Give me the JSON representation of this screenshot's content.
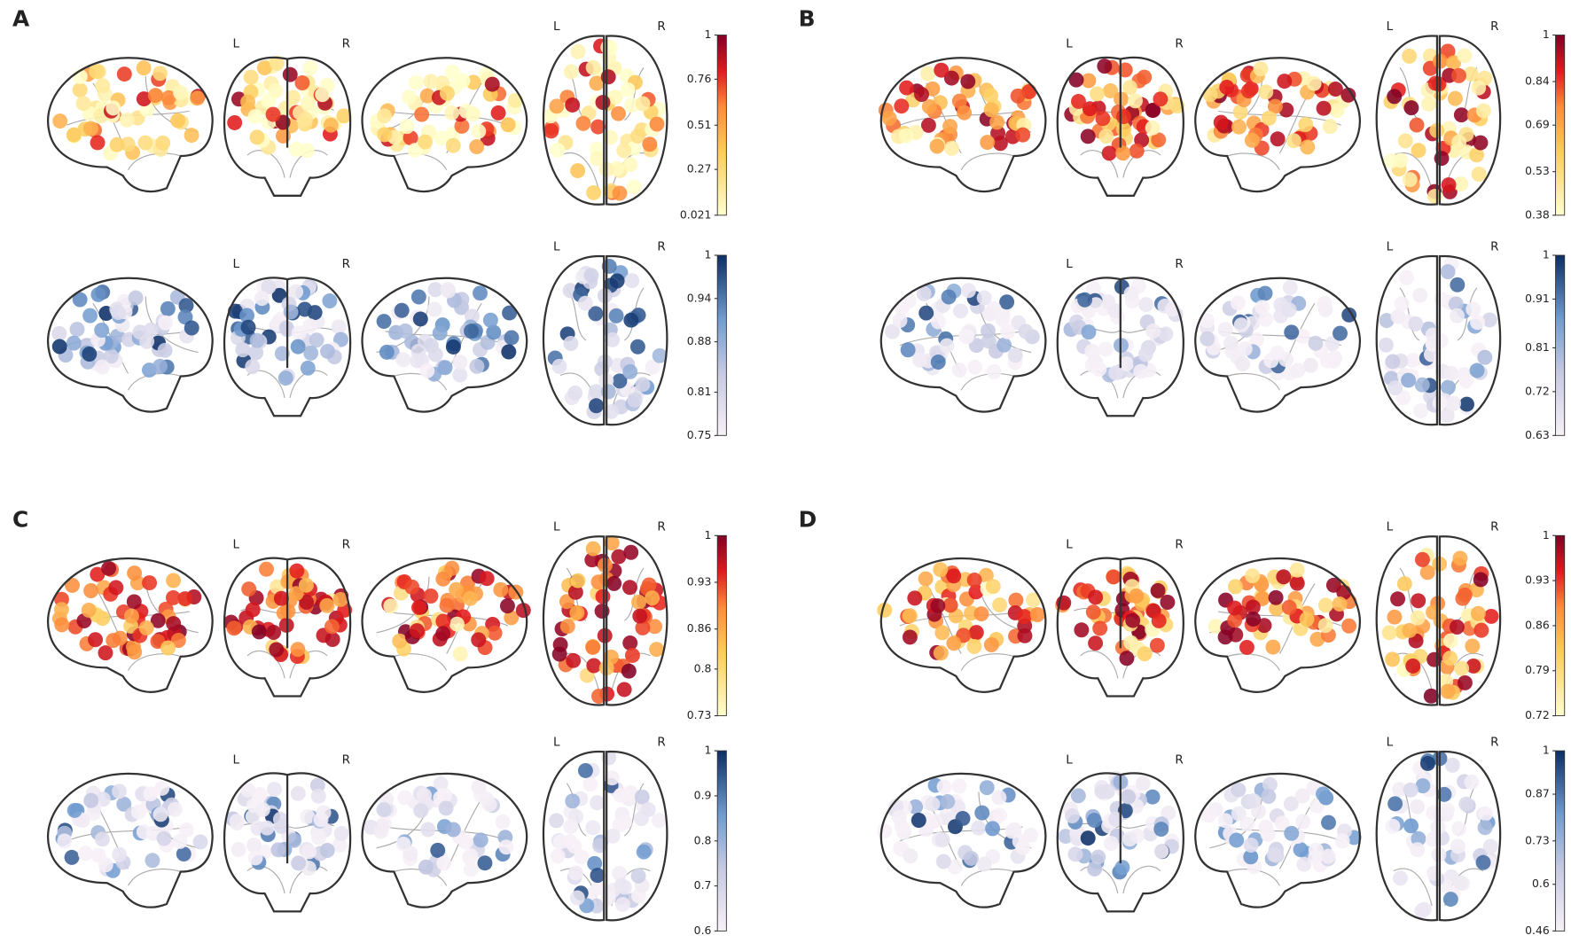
{
  "panels": [
    {
      "label": "A",
      "rows": [
        {
          "colormap": "warm",
          "colorbar_ticks": [
            1,
            0.76,
            0.51,
            0.27,
            0.021
          ],
          "coronal_labels": [
            "L",
            "R"
          ],
          "axial_labels": [
            "L",
            "R"
          ]
        },
        {
          "colormap": "cool",
          "colorbar_ticks": [
            1,
            0.94,
            0.88,
            0.81,
            0.75
          ],
          "coronal_labels": [
            "L",
            "R"
          ],
          "axial_labels": [
            "L",
            "R"
          ]
        }
      ]
    },
    {
      "label": "B",
      "rows": [
        {
          "colormap": "warm",
          "colorbar_ticks": [
            1,
            0.84,
            0.69,
            0.53,
            0.38
          ],
          "coronal_labels": [
            "L",
            "R"
          ],
          "axial_labels": [
            "L",
            "R"
          ]
        },
        {
          "colormap": "cool",
          "colorbar_ticks": [
            1,
            0.91,
            0.81,
            0.72,
            0.63
          ],
          "coronal_labels": [
            "L",
            "R"
          ],
          "axial_labels": [
            "L",
            "R"
          ]
        }
      ]
    },
    {
      "label": "C",
      "rows": [
        {
          "colormap": "warm",
          "colorbar_ticks": [
            1,
            0.93,
            0.86,
            0.8,
            0.73
          ],
          "coronal_labels": [
            "L",
            "R"
          ],
          "axial_labels": [
            "L",
            "R"
          ]
        },
        {
          "colormap": "cool",
          "colorbar_ticks": [
            1,
            0.9,
            0.8,
            0.7,
            0.6
          ],
          "coronal_labels": [
            "L",
            "R"
          ],
          "axial_labels": [
            "L",
            "R"
          ]
        }
      ]
    },
    {
      "label": "D",
      "rows": [
        {
          "colormap": "warm",
          "colorbar_ticks": [
            1,
            0.93,
            0.86,
            0.79,
            0.72
          ],
          "coronal_labels": [
            "L",
            "R"
          ],
          "axial_labels": [
            "L",
            "R"
          ]
        },
        {
          "colormap": "cool",
          "colorbar_ticks": [
            1,
            0.87,
            0.73,
            0.6,
            0.46
          ],
          "coronal_labels": [
            "L",
            "R"
          ],
          "axial_labels": [
            "L",
            "R"
          ]
        }
      ]
    }
  ]
}
